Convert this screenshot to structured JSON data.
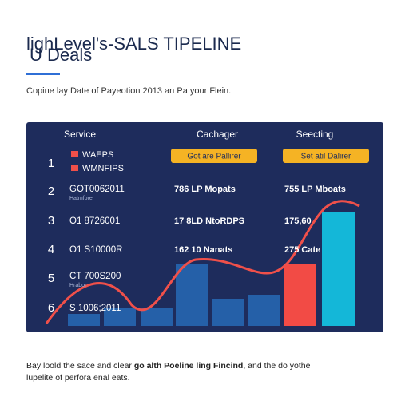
{
  "header": {
    "title_line1": "lighLevel's-SALS TIPELINE",
    "title_line2": "U Deals",
    "subtitle": "Copine lay Date of Payeotion 2013 an Pa your Flein."
  },
  "table": {
    "columns": [
      "Service",
      "Cachager",
      "Seecting"
    ],
    "buttons": [
      "Got are Pallirer",
      "Set atil Dalirer"
    ],
    "legend": [
      "WAEPS",
      "WMNFIPS"
    ],
    "rows": [
      {
        "number": "1",
        "cells": [
          "",
          "",
          ""
        ]
      },
      {
        "number": "2",
        "cells": [
          "GOT0062011",
          "786 LP Mopats",
          "755 LP Mboats"
        ],
        "note": "Hatmfore"
      },
      {
        "number": "3",
        "cells": [
          "O1 8726001",
          "17 8LD NtoRDPS",
          "175,60"
        ]
      },
      {
        "number": "4",
        "cells": [
          "O1 S10000R",
          "162 10 Nanats",
          "275 Cate"
        ]
      },
      {
        "number": "5",
        "cells": [
          "CT 700S200",
          "",
          ""
        ],
        "note": "Hrabor"
      },
      {
        "number": "6",
        "cells": [
          "S 1006;2011",
          "",
          ""
        ]
      }
    ]
  },
  "footer": {
    "line1_start": "Bay loold the sace and clear ",
    "line1_bold": "go alth Poeline ling Fincind",
    "line1_end": ", and the do yothe",
    "line2": "lupelite of perfora enal eats."
  }
}
